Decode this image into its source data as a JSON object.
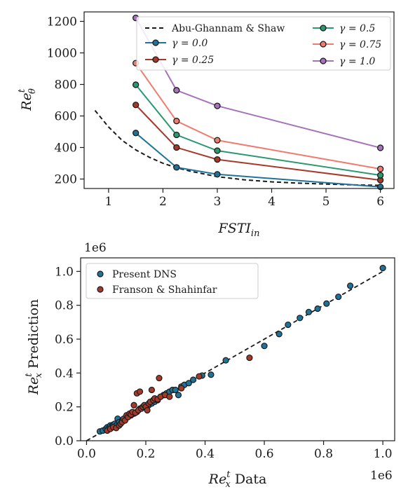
{
  "chart_data": [
    {
      "type": "line",
      "xlabel": "FSTI",
      "xlabel_sub": "in",
      "ylabel": "Re",
      "ylabel_sup": "t",
      "ylabel_sub": "θ",
      "xlim": [
        0.55,
        6.25
      ],
      "ylim": [
        140,
        1260
      ],
      "xticks": [
        1,
        2,
        3,
        4,
        5,
        6
      ],
      "yticks": [
        200,
        400,
        600,
        800,
        1000,
        1200
      ],
      "grid": false,
      "legend_position": "top-right",
      "x": [
        1.5,
        2.25,
        3,
        6
      ],
      "reference_curve": {
        "name": "Abu-Ghannam & Shaw",
        "style": "dashed",
        "color": "#1a1a1a",
        "x": [
          0.75,
          1.0,
          1.25,
          1.5,
          1.75,
          2.0,
          2.25,
          2.5,
          3.0,
          3.5,
          4.0,
          4.5,
          5.0,
          5.5,
          6.0
        ],
        "y": [
          635,
          530,
          445,
          385,
          338,
          300,
          272,
          250,
          215,
          195,
          182,
          174,
          168,
          163,
          160
        ]
      },
      "series": [
        {
          "name": "γ = 0.0",
          "color": "#1f7399",
          "values": [
            492,
            274,
            230,
            150
          ]
        },
        {
          "name": "γ = 0.25",
          "color": "#a63a2a",
          "values": [
            670,
            400,
            324,
            193
          ]
        },
        {
          "name": "γ = 0.5",
          "color": "#2a9970",
          "values": [
            798,
            480,
            380,
            224
          ]
        },
        {
          "name": "γ = 0.75",
          "color": "#f07c70",
          "values": [
            935,
            568,
            446,
            264
          ]
        },
        {
          "name": "γ = 1.0",
          "color": "#a673bb",
          "values": [
            1222,
            763,
            664,
            398
          ]
        }
      ]
    },
    {
      "type": "scatter",
      "xlabel": "Re",
      "xlabel_sup": "t",
      "xlabel_sub": "x",
      "xlabel_rest": " Data",
      "ylabel": "Re",
      "ylabel_sup": "t",
      "ylabel_sub": "x",
      "ylabel_rest": " Prediction",
      "x_offset_label": "1e6",
      "y_offset_label": "1e6",
      "xlim": [
        -0.02,
        1.04
      ],
      "ylim": [
        0,
        1.08
      ],
      "xticks": [
        0.0,
        0.2,
        0.4,
        0.6,
        0.8,
        1.0
      ],
      "yticks": [
        0.0,
        0.2,
        0.4,
        0.6,
        0.8,
        1.0
      ],
      "grid": false,
      "legend_position": "top-left",
      "reference_line": {
        "style": "dashed",
        "from": [
          0.0,
          0.0
        ],
        "to": [
          1.0,
          1.0
        ]
      },
      "series": [
        {
          "name": "Present DNS",
          "color": "#1f7399",
          "points": [
            [
              0.045,
              0.055
            ],
            [
              0.055,
              0.06
            ],
            [
              0.065,
              0.07
            ],
            [
              0.07,
              0.08
            ],
            [
              0.075,
              0.075
            ],
            [
              0.08,
              0.09
            ],
            [
              0.085,
              0.085
            ],
            [
              0.09,
              0.095
            ],
            [
              0.095,
              0.1
            ],
            [
              0.1,
              0.09
            ],
            [
              0.105,
              0.13
            ],
            [
              0.11,
              0.11
            ],
            [
              0.12,
              0.12
            ],
            [
              0.13,
              0.13
            ],
            [
              0.14,
              0.14
            ],
            [
              0.15,
              0.15
            ],
            [
              0.16,
              0.16
            ],
            [
              0.17,
              0.17
            ],
            [
              0.18,
              0.19
            ],
            [
              0.19,
              0.2
            ],
            [
              0.2,
              0.2
            ],
            [
              0.21,
              0.21
            ],
            [
              0.22,
              0.22
            ],
            [
              0.23,
              0.23
            ],
            [
              0.24,
              0.24
            ],
            [
              0.25,
              0.26
            ],
            [
              0.26,
              0.27
            ],
            [
              0.27,
              0.28
            ],
            [
              0.28,
              0.29
            ],
            [
              0.29,
              0.3
            ],
            [
              0.3,
              0.3
            ],
            [
              0.31,
              0.27
            ],
            [
              0.32,
              0.32
            ],
            [
              0.33,
              0.33
            ],
            [
              0.345,
              0.34
            ],
            [
              0.36,
              0.36
            ],
            [
              0.39,
              0.385
            ],
            [
              0.42,
              0.39
            ],
            [
              0.47,
              0.475
            ],
            [
              0.6,
              0.56
            ],
            [
              0.65,
              0.63
            ],
            [
              0.68,
              0.685
            ],
            [
              0.72,
              0.725
            ],
            [
              0.75,
              0.76
            ],
            [
              0.78,
              0.78
            ],
            [
              0.81,
              0.81
            ],
            [
              0.85,
              0.85
            ],
            [
              0.89,
              0.915
            ],
            [
              1.0,
              1.02
            ]
          ]
        },
        {
          "name": "Franson & Shahinfar",
          "color": "#a63a2a",
          "points": [
            [
              0.07,
              0.06
            ],
            [
              0.08,
              0.07
            ],
            [
              0.09,
              0.08
            ],
            [
              0.1,
              0.075
            ],
            [
              0.11,
              0.09
            ],
            [
              0.115,
              0.1
            ],
            [
              0.12,
              0.11
            ],
            [
              0.125,
              0.13
            ],
            [
              0.13,
              0.12
            ],
            [
              0.135,
              0.15
            ],
            [
              0.14,
              0.14
            ],
            [
              0.145,
              0.16
            ],
            [
              0.15,
              0.155
            ],
            [
              0.155,
              0.17
            ],
            [
              0.16,
              0.21
            ],
            [
              0.165,
              0.165
            ],
            [
              0.17,
              0.28
            ],
            [
              0.175,
              0.18
            ],
            [
              0.18,
              0.29
            ],
            [
              0.185,
              0.19
            ],
            [
              0.19,
              0.2
            ],
            [
              0.195,
              0.21
            ],
            [
              0.2,
              0.2
            ],
            [
              0.205,
              0.18
            ],
            [
              0.21,
              0.22
            ],
            [
              0.215,
              0.23
            ],
            [
              0.22,
              0.3
            ],
            [
              0.225,
              0.24
            ],
            [
              0.23,
              0.25
            ],
            [
              0.24,
              0.245
            ],
            [
              0.245,
              0.37
            ],
            [
              0.25,
              0.26
            ],
            [
              0.265,
              0.27
            ],
            [
              0.28,
              0.26
            ],
            [
              0.32,
              0.31
            ],
            [
              0.38,
              0.38
            ],
            [
              0.55,
              0.49
            ]
          ]
        }
      ]
    }
  ]
}
